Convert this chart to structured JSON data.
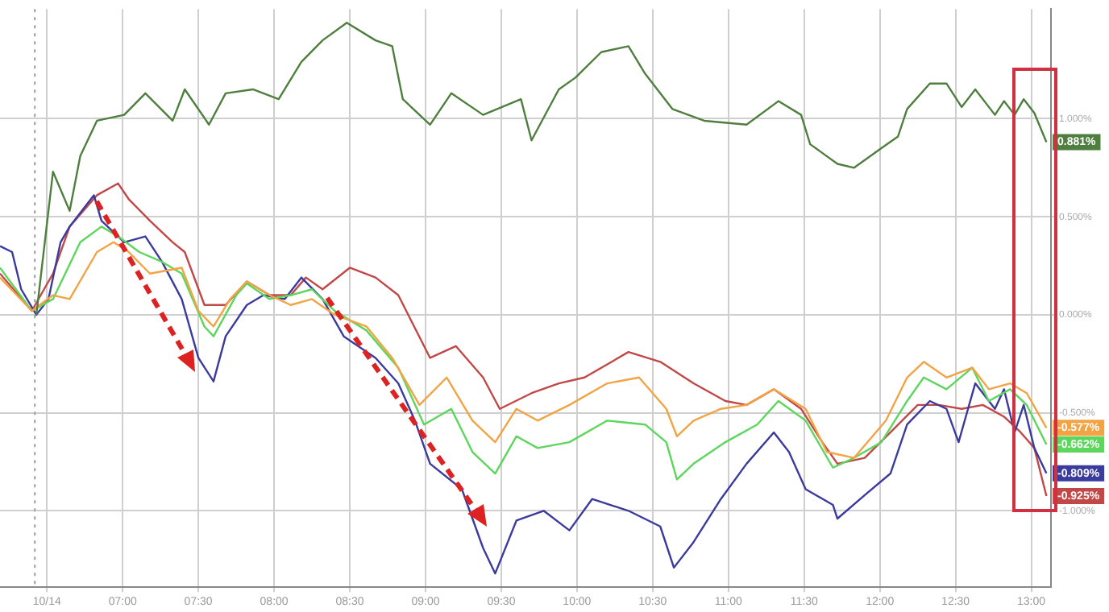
{
  "chart_data": {
    "type": "line",
    "xlim": [
      6.19,
      13.13
    ],
    "ylim": [
      -1.39,
      1.56
    ],
    "xticks": [
      {
        "value": 6.5,
        "label": "10/14"
      },
      {
        "value": 7,
        "label": "07:00"
      },
      {
        "value": 7.5,
        "label": "07:30"
      },
      {
        "value": 8,
        "label": "08:00"
      },
      {
        "value": 8.5,
        "label": "08:30"
      },
      {
        "value": 9,
        "label": "09:00"
      },
      {
        "value": 9.5,
        "label": "09:30"
      },
      {
        "value": 10,
        "label": "10:00"
      },
      {
        "value": 10.5,
        "label": "10:30"
      },
      {
        "value": 11,
        "label": "11:00"
      },
      {
        "value": 11.5,
        "label": "11:30"
      },
      {
        "value": 12,
        "label": "12:00"
      },
      {
        "value": 12.5,
        "label": "12:30"
      },
      {
        "value": 13,
        "label": "13:00"
      }
    ],
    "yticks": [
      {
        "value": -1,
        "label": "-1.000%"
      },
      {
        "value": -0.5,
        "label": "-0.500%"
      },
      {
        "value": 0,
        "label": "0.000%"
      },
      {
        "value": 0.5,
        "label": "0.500%"
      },
      {
        "value": 1,
        "label": "1.000%"
      }
    ],
    "grid": true,
    "legend": false,
    "marker": "none",
    "line_style": "solid",
    "ref_lines": [
      {
        "axis": "x",
        "value": 6.42,
        "color": "#9e9e9e",
        "line_style": "dotted"
      }
    ],
    "series": [
      {
        "color": "#4f7f3f",
        "x": [
          6.43,
          6.54,
          6.65,
          6.72,
          6.83,
          7.01,
          7.15,
          7.33,
          7.41,
          7.57,
          7.68,
          7.86,
          8.03,
          8.18,
          8.32,
          8.48,
          8.67,
          8.78,
          8.85,
          9.03,
          9.17,
          9.38,
          9.63,
          9.7,
          9.88,
          9.99,
          10.16,
          10.34,
          10.45,
          10.63,
          10.84,
          11.12,
          11.33,
          11.48,
          11.54,
          11.72,
          11.83,
          12.01,
          12.12,
          12.18,
          12.33,
          12.44,
          12.54,
          12.63,
          12.76,
          12.82,
          12.89,
          12.95,
          13.02,
          13.1
        ],
        "values": [
          0.0,
          0.73,
          0.53,
          0.81,
          0.99,
          1.02,
          1.13,
          0.99,
          1.15,
          0.97,
          1.13,
          1.15,
          1.1,
          1.29,
          1.4,
          1.49,
          1.4,
          1.37,
          1.1,
          0.97,
          1.13,
          1.02,
          1.1,
          0.89,
          1.15,
          1.21,
          1.34,
          1.37,
          1.23,
          1.05,
          0.99,
          0.97,
          1.09,
          1.02,
          0.87,
          0.77,
          0.75,
          0.85,
          0.91,
          1.05,
          1.18,
          1.18,
          1.06,
          1.15,
          1.02,
          1.09,
          1.02,
          1.1,
          1.03,
          0.881
        ],
        "value_labels": [
          null,
          null,
          null,
          null,
          null,
          null,
          null,
          null,
          null,
          null,
          null,
          null,
          null,
          null,
          null,
          null,
          null,
          null,
          null,
          null,
          null,
          null,
          null,
          null,
          null,
          null,
          null,
          null,
          null,
          null,
          null,
          null,
          null,
          null,
          null,
          null,
          null,
          null,
          null,
          null,
          null,
          null,
          null,
          null,
          null,
          null,
          null,
          null,
          null,
          "0.881%"
        ]
      },
      {
        "color": "#f2a444",
        "x": [
          6.19,
          6.4,
          6.54,
          6.65,
          6.83,
          6.94,
          7.04,
          7.18,
          7.39,
          7.5,
          7.6,
          7.71,
          7.82,
          7.97,
          8.11,
          8.25,
          8.4,
          8.61,
          8.78,
          8.96,
          9.14,
          9.31,
          9.46,
          9.6,
          9.74,
          9.95,
          10.2,
          10.41,
          10.59,
          10.66,
          10.77,
          10.95,
          11.12,
          11.3,
          11.51,
          11.65,
          11.83,
          12.04,
          12.18,
          12.29,
          12.44,
          12.61,
          12.72,
          12.86,
          12.97,
          13.1
        ],
        "values": [
          0.19,
          0.02,
          0.1,
          0.08,
          0.32,
          0.37,
          0.32,
          0.21,
          0.24,
          0.02,
          -0.06,
          0.08,
          0.17,
          0.1,
          0.05,
          0.08,
          0.0,
          -0.06,
          -0.22,
          -0.46,
          -0.32,
          -0.54,
          -0.65,
          -0.48,
          -0.54,
          -0.46,
          -0.35,
          -0.32,
          -0.48,
          -0.62,
          -0.54,
          -0.48,
          -0.46,
          -0.38,
          -0.48,
          -0.7,
          -0.73,
          -0.54,
          -0.32,
          -0.24,
          -0.32,
          -0.27,
          -0.38,
          -0.35,
          -0.4,
          -0.577
        ],
        "value_labels": [
          null,
          null,
          null,
          null,
          null,
          null,
          null,
          null,
          null,
          null,
          null,
          null,
          null,
          null,
          null,
          null,
          null,
          null,
          null,
          null,
          null,
          null,
          null,
          null,
          null,
          null,
          null,
          null,
          null,
          null,
          null,
          null,
          null,
          null,
          null,
          null,
          null,
          null,
          null,
          null,
          null,
          null,
          null,
          null,
          null,
          "-0.577%"
        ]
      },
      {
        "color": "#5cd65c",
        "x": [
          6.19,
          6.4,
          6.54,
          6.72,
          6.86,
          6.97,
          7.11,
          7.26,
          7.39,
          7.54,
          7.6,
          7.75,
          7.82,
          7.97,
          8.11,
          8.25,
          8.4,
          8.61,
          8.82,
          8.99,
          9.17,
          9.31,
          9.46,
          9.6,
          9.74,
          9.95,
          10.2,
          10.45,
          10.59,
          10.66,
          10.77,
          10.98,
          11.19,
          11.33,
          11.51,
          11.69,
          11.83,
          12.01,
          12.18,
          12.29,
          12.44,
          12.61,
          12.72,
          12.86,
          12.97,
          13.1
        ],
        "values": [
          0.24,
          0.02,
          0.08,
          0.37,
          0.45,
          0.4,
          0.32,
          0.27,
          0.21,
          -0.06,
          -0.11,
          0.1,
          0.16,
          0.08,
          0.1,
          0.13,
          0.02,
          -0.08,
          -0.27,
          -0.56,
          -0.48,
          -0.7,
          -0.81,
          -0.62,
          -0.68,
          -0.65,
          -0.54,
          -0.56,
          -0.65,
          -0.84,
          -0.76,
          -0.65,
          -0.56,
          -0.44,
          -0.54,
          -0.78,
          -0.73,
          -0.65,
          -0.44,
          -0.32,
          -0.38,
          -0.27,
          -0.44,
          -0.38,
          -0.46,
          -0.662
        ],
        "value_labels": [
          null,
          null,
          null,
          null,
          null,
          null,
          null,
          null,
          null,
          null,
          null,
          null,
          null,
          null,
          null,
          null,
          null,
          null,
          null,
          null,
          null,
          null,
          null,
          null,
          null,
          null,
          null,
          null,
          null,
          null,
          null,
          null,
          null,
          null,
          null,
          null,
          null,
          null,
          null,
          null,
          null,
          null,
          null,
          null,
          null,
          "-0.662%"
        ]
      },
      {
        "color": "#3b3b9e",
        "x": [
          6.19,
          6.27,
          6.33,
          6.43,
          6.51,
          6.59,
          6.65,
          6.81,
          6.86,
          7.01,
          7.15,
          7.26,
          7.39,
          7.5,
          7.6,
          7.68,
          7.82,
          7.93,
          8.07,
          8.18,
          8.32,
          8.46,
          8.67,
          8.82,
          8.93,
          9.03,
          9.24,
          9.38,
          9.46,
          9.6,
          9.78,
          9.95,
          10.1,
          10.34,
          10.55,
          10.64,
          10.77,
          10.95,
          11.12,
          11.3,
          11.4,
          11.51,
          11.69,
          11.72,
          11.9,
          12.07,
          12.18,
          12.33,
          12.44,
          12.52,
          12.63,
          12.76,
          12.82,
          12.89,
          12.95,
          13.02,
          13.1
        ],
        "values": [
          0.35,
          0.32,
          0.13,
          0.0,
          0.08,
          0.37,
          0.45,
          0.61,
          0.48,
          0.37,
          0.4,
          0.27,
          0.08,
          -0.22,
          -0.34,
          -0.11,
          0.05,
          0.1,
          0.08,
          0.19,
          0.08,
          -0.11,
          -0.22,
          -0.35,
          -0.54,
          -0.76,
          -0.89,
          -1.19,
          -1.32,
          -1.05,
          -1.0,
          -1.1,
          -0.94,
          -1.0,
          -1.08,
          -1.29,
          -1.16,
          -0.94,
          -0.76,
          -0.6,
          -0.7,
          -0.89,
          -0.97,
          -1.04,
          -0.92,
          -0.81,
          -0.56,
          -0.44,
          -0.48,
          -0.65,
          -0.35,
          -0.48,
          -0.38,
          -0.6,
          -0.46,
          -0.68,
          -0.809
        ],
        "value_labels": [
          null,
          null,
          null,
          null,
          null,
          null,
          null,
          null,
          null,
          null,
          null,
          null,
          null,
          null,
          null,
          null,
          null,
          null,
          null,
          null,
          null,
          null,
          null,
          null,
          null,
          null,
          null,
          null,
          null,
          null,
          null,
          null,
          null,
          null,
          null,
          null,
          null,
          null,
          null,
          null,
          null,
          null,
          null,
          null,
          null,
          null,
          null,
          null,
          null,
          null,
          null,
          null,
          null,
          null,
          null,
          null,
          "-0.809%"
        ]
      },
      {
        "color": "#c24848",
        "x": [
          6.19,
          6.4,
          6.54,
          6.65,
          6.83,
          6.97,
          7.04,
          7.18,
          7.33,
          7.41,
          7.54,
          7.68,
          7.82,
          7.97,
          8.11,
          8.21,
          8.32,
          8.5,
          8.67,
          8.82,
          9.03,
          9.2,
          9.38,
          9.49,
          9.7,
          9.88,
          10.05,
          10.34,
          10.55,
          10.77,
          10.98,
          11.12,
          11.3,
          11.48,
          11.62,
          11.72,
          11.9,
          12.07,
          12.25,
          12.39,
          12.54,
          12.68,
          12.82,
          12.93,
          13.02,
          13.1
        ],
        "values": [
          0.21,
          0.02,
          0.21,
          0.45,
          0.61,
          0.67,
          0.59,
          0.48,
          0.37,
          0.32,
          0.05,
          0.05,
          0.17,
          0.1,
          0.1,
          0.19,
          0.13,
          0.24,
          0.19,
          0.1,
          -0.22,
          -0.16,
          -0.32,
          -0.48,
          -0.4,
          -0.35,
          -0.32,
          -0.19,
          -0.24,
          -0.35,
          -0.44,
          -0.46,
          -0.38,
          -0.48,
          -0.65,
          -0.76,
          -0.73,
          -0.6,
          -0.46,
          -0.46,
          -0.48,
          -0.46,
          -0.52,
          -0.6,
          -0.68,
          -0.925
        ],
        "value_labels": [
          null,
          null,
          null,
          null,
          null,
          null,
          null,
          null,
          null,
          null,
          null,
          null,
          null,
          null,
          null,
          null,
          null,
          null,
          null,
          null,
          null,
          null,
          null,
          null,
          null,
          null,
          null,
          null,
          null,
          null,
          null,
          null,
          null,
          null,
          null,
          null,
          null,
          null,
          null,
          null,
          null,
          null,
          null,
          null,
          null,
          "-0.925%"
        ]
      }
    ]
  }
}
